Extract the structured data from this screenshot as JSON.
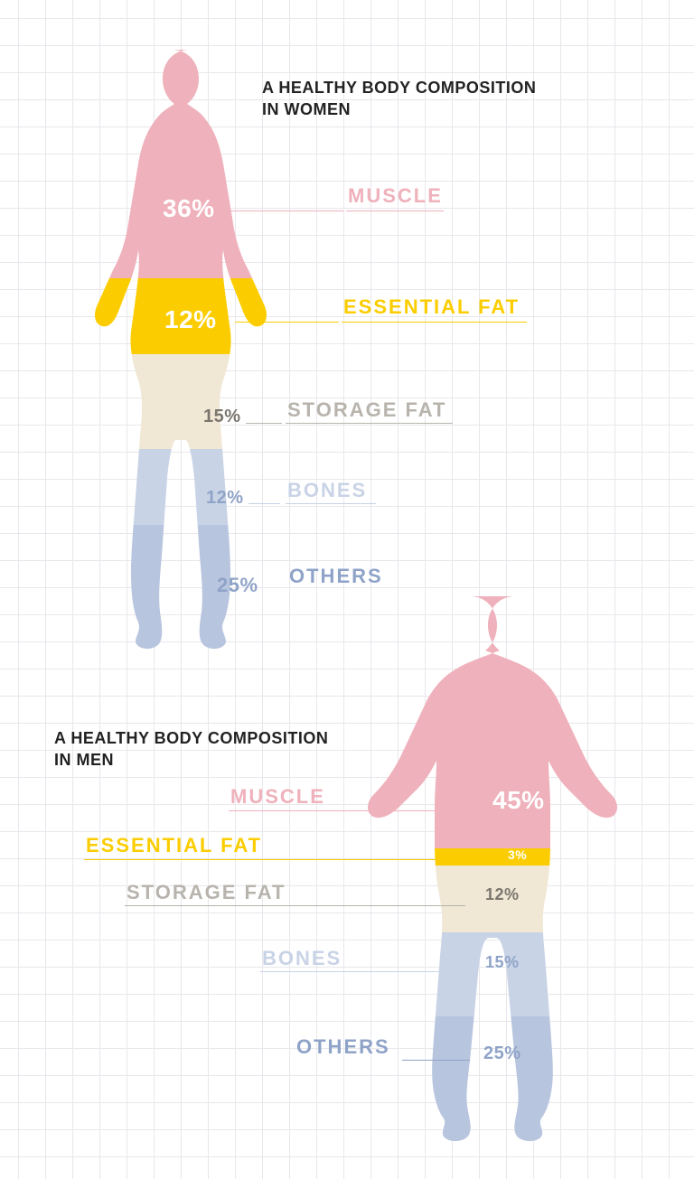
{
  "grid": {
    "cell": 30,
    "line_color": "#e8e8ec",
    "bg_color": "#ffffff"
  },
  "colors": {
    "muscle": "#efb1bb",
    "essential_fat": "#fbcd00",
    "storage_fat": "#f0e7d5",
    "bones": "#c9d3e6",
    "others": "#b8c5de",
    "title": "#222222",
    "label_muscle": "#efb1bb",
    "label_essential": "#fbcd00",
    "label_storage": "#b8b4ad",
    "label_bones": "#c9d3e6",
    "label_others": "#8fa3c8",
    "pct_on_muscle": "#ffffff",
    "pct_on_essential": "#ffffff",
    "pct_storage": "#7a766e",
    "pct_bones": "#8fa3c8",
    "pct_others": "#8fa3c8"
  },
  "women": {
    "title": "A HEALTHY BODY COMPOSITION\nIN WOMEN",
    "segments": [
      {
        "key": "muscle",
        "label": "MUSCLE",
        "value": 36,
        "pct": "36%"
      },
      {
        "key": "essential_fat",
        "label": "ESSENTIAL FAT",
        "value": 12,
        "pct": "12%"
      },
      {
        "key": "storage_fat",
        "label": "STORAGE FAT",
        "value": 15,
        "pct": "15%"
      },
      {
        "key": "bones",
        "label": "BONES",
        "value": 12,
        "pct": "12%"
      },
      {
        "key": "others",
        "label": "OTHERS",
        "value": 25,
        "pct": "25%"
      }
    ]
  },
  "men": {
    "title": "A HEALTHY BODY COMPOSITION\nIN MEN",
    "segments": [
      {
        "key": "muscle",
        "label": "MUSCLE",
        "value": 45,
        "pct": "45%"
      },
      {
        "key": "essential_fat",
        "label": "ESSENTIAL FAT",
        "value": 3,
        "pct": "3%"
      },
      {
        "key": "storage_fat",
        "label": "STORAGE FAT",
        "value": 12,
        "pct": "12%"
      },
      {
        "key": "bones",
        "label": "BONES",
        "value": 15,
        "pct": "15%"
      },
      {
        "key": "others",
        "label": "OTHERS",
        "value": 25,
        "pct": "25%"
      }
    ]
  },
  "typography": {
    "title_fontsize": 18,
    "label_fontsize": 22,
    "pct_big_fontsize": 28,
    "pct_small_fontsize": 18
  }
}
